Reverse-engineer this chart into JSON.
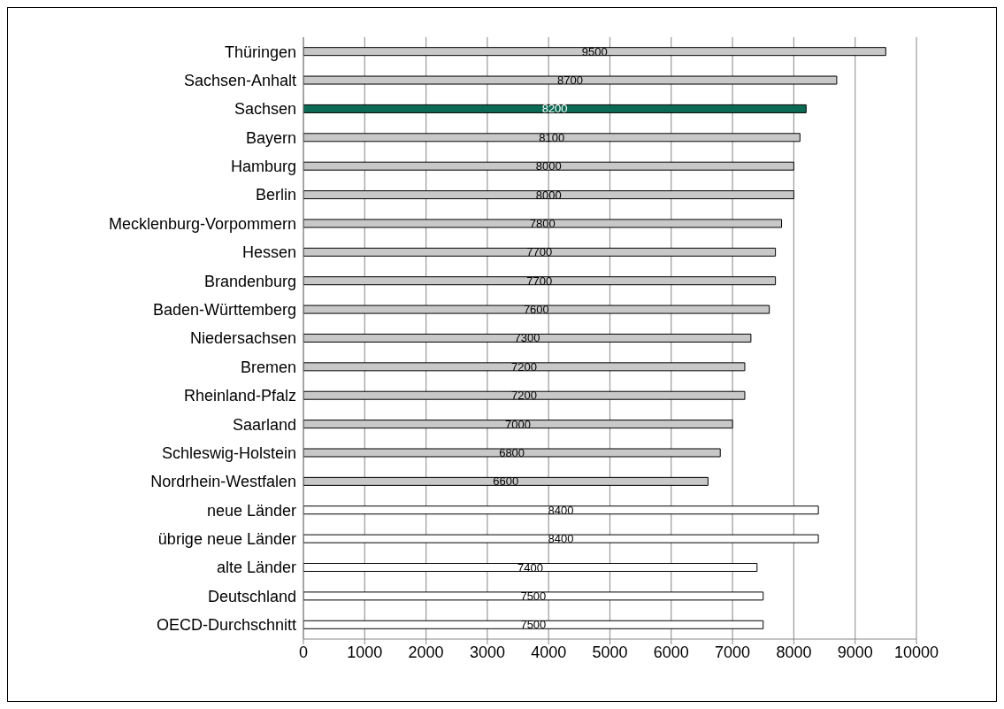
{
  "chart_data": {
    "type": "bar",
    "orientation": "horizontal",
    "categories": [
      "Thüringen",
      "Sachsen-Anhalt",
      "Sachsen",
      "Bayern",
      "Hamburg",
      "Berlin",
      "Mecklenburg-Vorpommern",
      "Hessen",
      "Brandenburg",
      "Baden-Württemberg",
      "Niedersachsen",
      "Bremen",
      "Rheinland-Pfalz",
      "Saarland",
      "Schleswig-Holstein",
      "Nordrhein-Westfalen",
      "neue Länder",
      "übrige neue Länder",
      "alte Länder",
      "Deutschland",
      "OECD-Durchschnitt"
    ],
    "values": [
      9500,
      8700,
      8200,
      8100,
      8000,
      8000,
      7800,
      7700,
      7700,
      7600,
      7300,
      7200,
      7200,
      7000,
      6800,
      6600,
      8400,
      8400,
      7400,
      7500,
      7500
    ],
    "colors": [
      "#c8c8c8",
      "#c8c8c8",
      "#0b6b55",
      "#c8c8c8",
      "#c8c8c8",
      "#c8c8c8",
      "#c8c8c8",
      "#c8c8c8",
      "#c8c8c8",
      "#c8c8c8",
      "#c8c8c8",
      "#c8c8c8",
      "#c8c8c8",
      "#c8c8c8",
      "#c8c8c8",
      "#c8c8c8",
      "#ffffff",
      "#ffffff",
      "#ffffff",
      "#ffffff",
      "#ffffff"
    ],
    "xlim": [
      0,
      10000
    ],
    "xticks": [
      0,
      1000,
      2000,
      3000,
      4000,
      5000,
      6000,
      7000,
      8000,
      9000,
      10000
    ],
    "grid": "x",
    "data_labels": true
  }
}
